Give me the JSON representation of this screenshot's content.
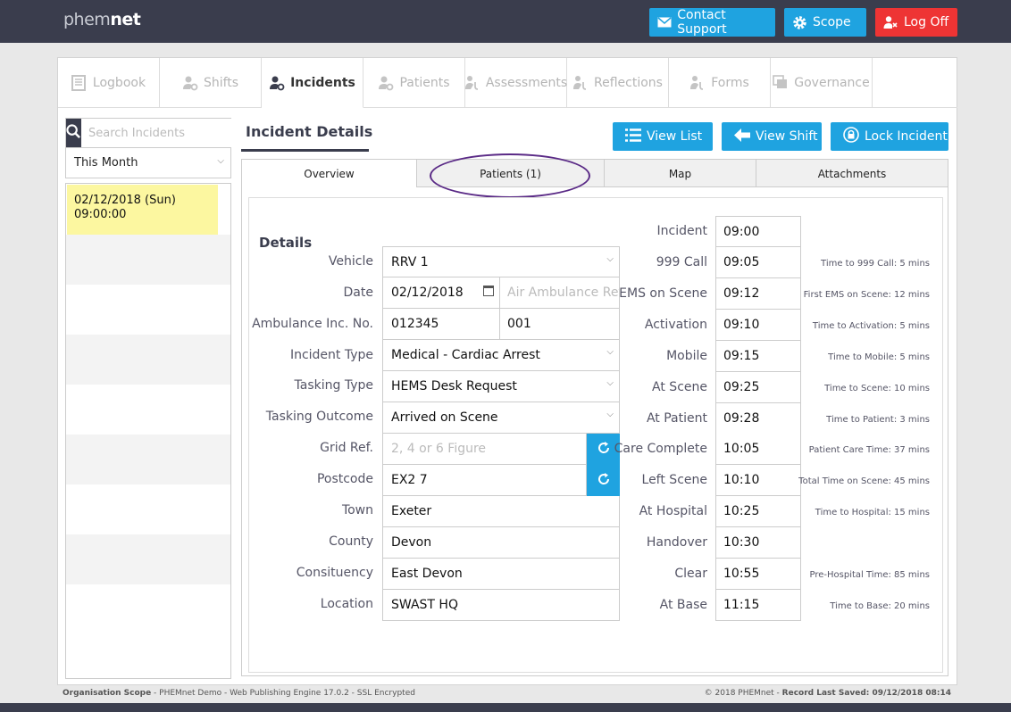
{
  "brand": {
    "part1": "phem",
    "part2": "net"
  },
  "header_buttons": {
    "contact": "Contact Support",
    "scope": "Scope",
    "logoff": "Log Off"
  },
  "nav_tabs": [
    {
      "label": "Logbook",
      "icon": "book-icon"
    },
    {
      "label": "Shifts",
      "icon": "user-gear-icon"
    },
    {
      "label": "Incidents",
      "icon": "user-gear-icon",
      "active": true
    },
    {
      "label": "Patients",
      "icon": "user-gear-icon"
    },
    {
      "label": "Assessments",
      "icon": "stethoscope-icon"
    },
    {
      "label": "Reflections",
      "icon": "stethoscope-icon"
    },
    {
      "label": "Forms",
      "icon": "stethoscope-icon"
    },
    {
      "label": "Governance",
      "icon": "clone-icon"
    }
  ],
  "sidebar": {
    "search_placeholder": "Search Incidents",
    "filter": "This Month",
    "incidents": [
      {
        "date": "02/12/2018 (Sun)",
        "time": "09:00:00"
      }
    ]
  },
  "content": {
    "title": "Incident Details",
    "buttons": {
      "view_list": "View List",
      "view_shift": "View Shift",
      "lock": "Lock Incident"
    },
    "tabs": [
      "Overview",
      "Patients (1)",
      "Map",
      "Attachments"
    ],
    "details_heading": "Details"
  },
  "details": {
    "vehicle": {
      "label": "Vehicle",
      "value": "RRV 1"
    },
    "date": {
      "label": "Date",
      "value": "02/12/2018",
      "air_placeholder": "Air Ambulance Ref"
    },
    "ambulance": {
      "label": "Ambulance Inc. No.",
      "value": "012345",
      "value2": "001"
    },
    "incident_type": {
      "label": "Incident Type",
      "value": "Medical - Cardiac Arrest"
    },
    "tasking_type": {
      "label": "Tasking Type",
      "value": "HEMS Desk Request"
    },
    "tasking_outcome": {
      "label": "Tasking Outcome",
      "value": "Arrived on Scene"
    },
    "grid_ref": {
      "label": "Grid Ref.",
      "placeholder": "2, 4 or 6 Figure"
    },
    "postcode": {
      "label": "Postcode",
      "value": "EX2 7"
    },
    "town": {
      "label": "Town",
      "value": "Exeter"
    },
    "county": {
      "label": "County",
      "value": "Devon"
    },
    "constituency": {
      "label": "Consituency",
      "value": "East Devon"
    },
    "location": {
      "label": "Location",
      "value": "SWAST HQ"
    }
  },
  "times": [
    {
      "label": "Incident",
      "value": "09:00",
      "note": ""
    },
    {
      "label": "999 Call",
      "value": "09:05",
      "note": "Time to 999 Call: 5 mins"
    },
    {
      "label": "EMS on Scene",
      "value": "09:12",
      "note": "First EMS on Scene: 12 mins"
    },
    {
      "label": "Activation",
      "value": "09:10",
      "note": "Time to Activation: 5 mins"
    },
    {
      "label": "Mobile",
      "value": "09:15",
      "note": "Time to Mobile: 5 mins"
    },
    {
      "label": "At Scene",
      "value": "09:25",
      "note": "Time to Scene: 10 mins"
    },
    {
      "label": "At Patient",
      "value": "09:28",
      "note": "Time to Patient: 3 mins"
    },
    {
      "label": "Care Complete",
      "value": "10:05",
      "note": "Patient Care Time: 37 mins"
    },
    {
      "label": "Left Scene",
      "value": "10:10",
      "note": "Total Time on Scene: 45 mins"
    },
    {
      "label": "At Hospital",
      "value": "10:25",
      "note": "Time to Hospital: 15 mins"
    },
    {
      "label": "Handover",
      "value": "10:30",
      "note": ""
    },
    {
      "label": "Clear",
      "value": "10:55",
      "note": "Pre-Hospital Time: 85 mins"
    },
    {
      "label": "At Base",
      "value": "11:15",
      "note": "Time to Base: 20 mins"
    }
  ],
  "footer": {
    "left_bold": "Organisation Scope",
    "left_rest": " - PHEMnet Demo - Web Publishing Engine 17.0.2 - SSL Encrypted",
    "right_prefix": "© 2018 PHEMnet - ",
    "right_bold": "Record Last Saved: 09/12/2018 08:14"
  },
  "colors": {
    "accent": "#1fa3e0",
    "danger": "#ee3434",
    "dark": "#3a3d4d",
    "highlight": "#fcf7a0",
    "annotation": "#5a2a86"
  }
}
